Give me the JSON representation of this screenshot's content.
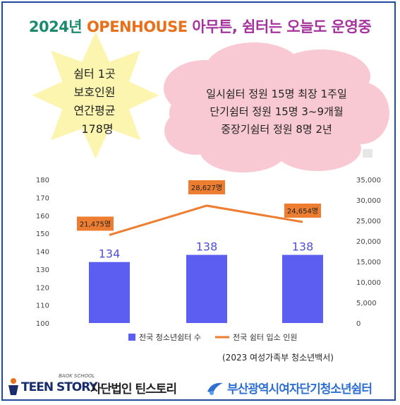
{
  "title": {
    "year": "2024년",
    "openhouse": "OPENHOUSE",
    "rest": "아무튼, 쉼터는 오늘도 운영중"
  },
  "star_note": {
    "line1": "쉼터 1곳",
    "line2": "보호인원",
    "line3": "연간평균",
    "line4": "178명"
  },
  "cloud_note": {
    "line1": "일시쉼터 정원 15명 최장 1주일",
    "line2": "단기쉼터 정원 15명 3~9개월",
    "line3": "중장기쉼터 정원 8명 2년"
  },
  "chart_data": {
    "type": "bar",
    "categories": [
      "",
      "",
      ""
    ],
    "series": [
      {
        "name": "전국 청소년쉼터 수",
        "type": "bar",
        "axis": "left",
        "values": [
          134,
          138,
          138
        ],
        "labels": [
          "134",
          "138",
          "138"
        ],
        "color": "#5b5ef0"
      },
      {
        "name": "전국 쉼터 입소 인원",
        "type": "line",
        "axis": "right",
        "values": [
          21475,
          28627,
          24654
        ],
        "labels": [
          "21,475명",
          "28,627명",
          "24,654명"
        ],
        "color": "#ed7d31"
      }
    ],
    "ylim_left": [
      100,
      180
    ],
    "yticks_left": [
      "180",
      "170",
      "160",
      "150",
      "140",
      "130",
      "120",
      "110",
      "100"
    ],
    "ylim_right": [
      0,
      35000
    ],
    "yticks_right": [
      "35,000",
      "30,000",
      "25,000",
      "20,000",
      "15,000",
      "10,000",
      "5,000",
      "0"
    ],
    "legend_position": "bottom",
    "grid": false
  },
  "caption": "(2023 여성가족부 청소년백서)",
  "footer": {
    "brand_small": "BAOK SCHOOL",
    "brand_teen": "TEEN STORY",
    "brand_org": "사단법인 틴스토리",
    "shelter": "부산광역시여자단기청소년쉼터"
  }
}
